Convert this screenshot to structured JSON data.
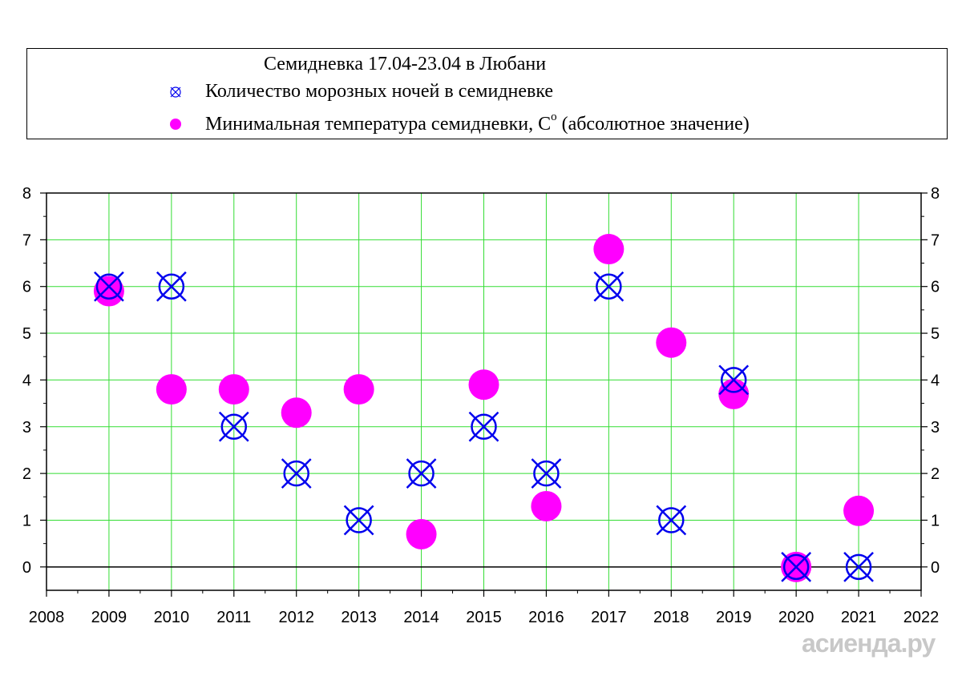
{
  "legend": {
    "title": "Семидневка 17.04-23.04 в Любани",
    "series1_label": "Количество морозных ночей в семидневке",
    "series2_label_main": "Минимальная температура семидневки, С",
    "series2_label_sup": "o",
    "series2_label_tail": " (абсолютное значение)"
  },
  "watermark": "асиенда.ру",
  "colors": {
    "grid": "#33dd33",
    "frost_marker": "#0000ee",
    "temp_marker": "#ff00ff",
    "axis": "#000000"
  },
  "chart_data": {
    "type": "scatter",
    "title": "Семидневка 17.04-23.04 в Любани",
    "xlim": [
      2008,
      2022
    ],
    "ylim": [
      -0.5,
      8
    ],
    "x_ticks": [
      2008,
      2009,
      2010,
      2011,
      2012,
      2013,
      2014,
      2015,
      2016,
      2017,
      2018,
      2019,
      2020,
      2021,
      2022
    ],
    "y_ticks": [
      0,
      1,
      2,
      3,
      4,
      5,
      6,
      7,
      8
    ],
    "grid": true,
    "legend_position": "top",
    "series": [
      {
        "name": "Количество морозных ночей в семидневке",
        "marker": "circle-x",
        "x": [
          2009,
          2010,
          2011,
          2012,
          2013,
          2014,
          2015,
          2016,
          2017,
          2018,
          2019,
          2020,
          2021
        ],
        "y": [
          6,
          6,
          3,
          2,
          1,
          2,
          3,
          2,
          6,
          1,
          4,
          0,
          0
        ]
      },
      {
        "name": "Минимальная температура семидневки, Сo (абсолютное значение)",
        "marker": "filled-circle",
        "x": [
          2009,
          2010,
          2011,
          2012,
          2013,
          2014,
          2015,
          2016,
          2017,
          2018,
          2019,
          2020,
          2021
        ],
        "y": [
          5.9,
          3.8,
          3.8,
          3.3,
          3.8,
          0.7,
          3.9,
          1.3,
          6.8,
          4.8,
          3.7,
          0.0,
          1.2
        ]
      }
    ]
  }
}
